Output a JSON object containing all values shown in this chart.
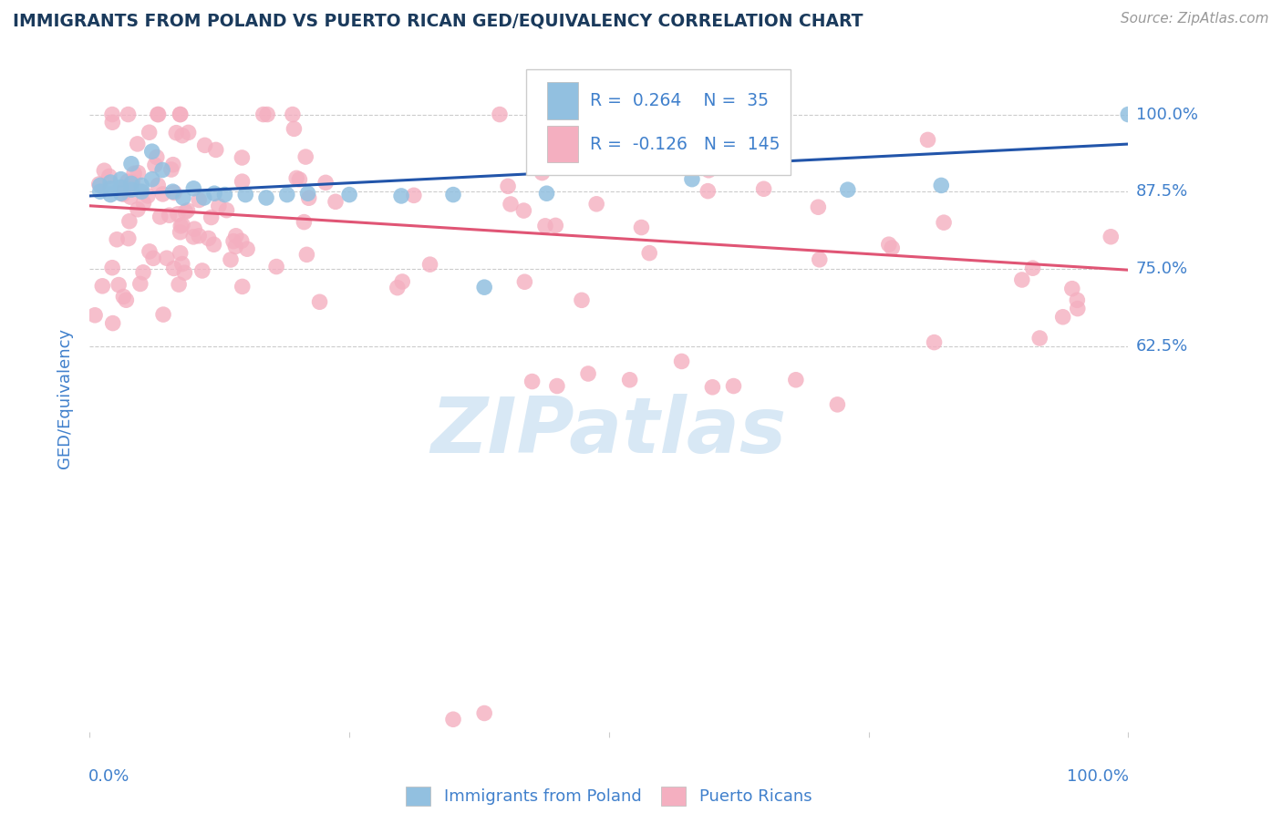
{
  "title": "IMMIGRANTS FROM POLAND VS PUERTO RICAN GED/EQUIVALENCY CORRELATION CHART",
  "source": "Source: ZipAtlas.com",
  "ylabel": "GED/Equivalency",
  "ytick_labels": [
    "62.5%",
    "75.0%",
    "87.5%",
    "100.0%"
  ],
  "ytick_values": [
    0.625,
    0.75,
    0.875,
    1.0
  ],
  "legend_blue_label": "Immigrants from Poland",
  "legend_pink_label": "Puerto Ricans",
  "R_blue": 0.264,
  "N_blue": 35,
  "R_pink": -0.126,
  "N_pink": 145,
  "blue_color": "#92c0e0",
  "pink_color": "#f4afc0",
  "blue_line_color": "#2255aa",
  "pink_line_color": "#e05575",
  "background_color": "#ffffff",
  "title_color": "#1a3a5c",
  "axis_label_color": "#4080cc",
  "watermark_color": "#d8e8f5",
  "xlim": [
    0.0,
    1.0
  ],
  "ylim": [
    0.0,
    1.08
  ],
  "blue_trend_start": 0.868,
  "blue_trend_end": 0.952,
  "pink_trend_start": 0.852,
  "pink_trend_end": 0.748
}
